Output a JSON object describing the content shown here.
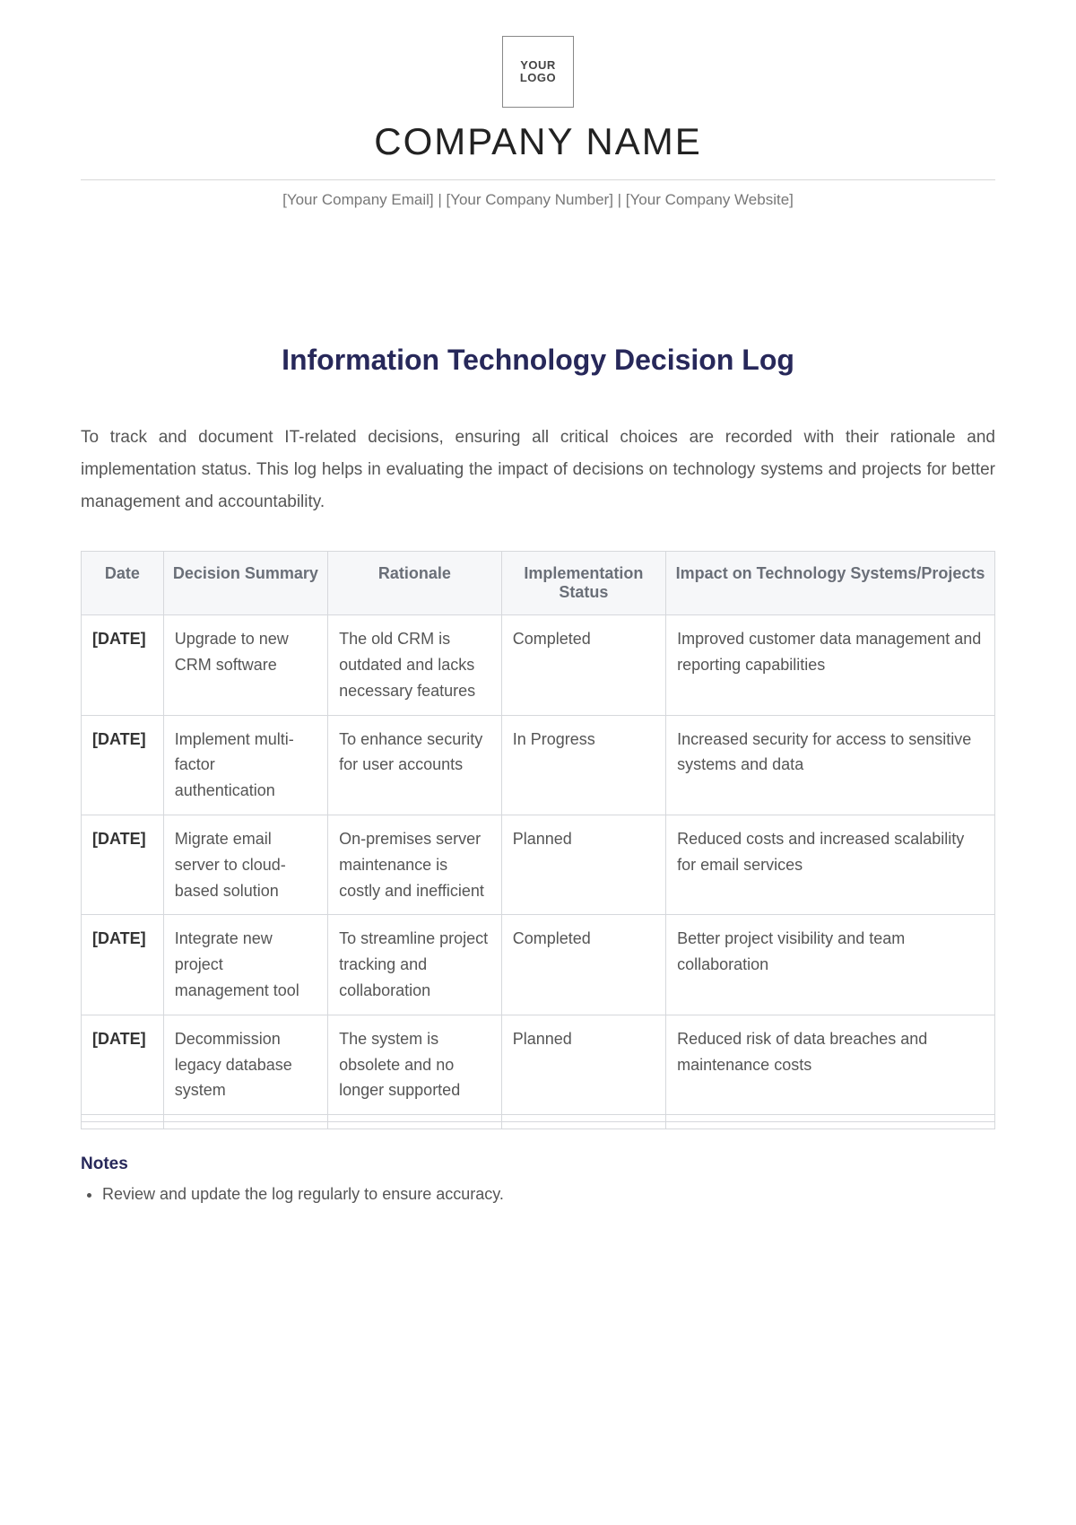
{
  "header": {
    "logo_text": "YOUR\nLOGO",
    "company_name": "COMPANY NAME",
    "contact_line": "[Your Company Email] | [Your Company Number] | [Your Company Website]"
  },
  "document": {
    "title": "Information Technology Decision Log",
    "intro": "To track and document IT-related decisions, ensuring all critical choices are recorded with their rationale and implementation status. This log helps in evaluating the impact of decisions on technology systems and projects for better management and accountability."
  },
  "table": {
    "columns": [
      "Date",
      "Decision Summary",
      "Rationale",
      "Implementation Status",
      "Impact on Technology Systems/Projects"
    ],
    "col_widths_pct": [
      9,
      18,
      19,
      18,
      36
    ],
    "header_bg": "#f6f7f9",
    "header_color": "#6a6f78",
    "border_color": "#d6d8dc",
    "cell_color": "#555555",
    "fontsize": 18,
    "rows": [
      {
        "date": "[DATE]",
        "summary": "Upgrade to new CRM software",
        "rationale": "The old CRM is outdated and lacks necessary features",
        "status": "Completed",
        "impact": "Improved customer data management and reporting capabilities"
      },
      {
        "date": "[DATE]",
        "summary": "Implement multi-factor authentication",
        "rationale": "To enhance security for user accounts",
        "status": "In Progress",
        "impact": "Increased security for access to sensitive systems and data"
      },
      {
        "date": "[DATE]",
        "summary": "Migrate email server to cloud-based solution",
        "rationale": "On-premises server maintenance is costly and inefficient",
        "status": "Planned",
        "impact": "Reduced costs and increased scalability for email services"
      },
      {
        "date": "[DATE]",
        "summary": "Integrate new project management tool",
        "rationale": "To streamline project tracking and collaboration",
        "status": "Completed",
        "impact": "Better project visibility and team collaboration"
      },
      {
        "date": "[DATE]",
        "summary": "Decommission legacy database system",
        "rationale": "The system is obsolete and no longer supported",
        "status": "Planned",
        "impact": "Reduced risk of data breaches and maintenance costs"
      }
    ],
    "trailing_empty_rows": 2
  },
  "notes": {
    "title": "Notes",
    "items": [
      "Review and update the log regularly to ensure accuracy."
    ]
  },
  "colors": {
    "title_color": "#27285a",
    "body_text": "#555555",
    "page_bg": "#ffffff"
  }
}
